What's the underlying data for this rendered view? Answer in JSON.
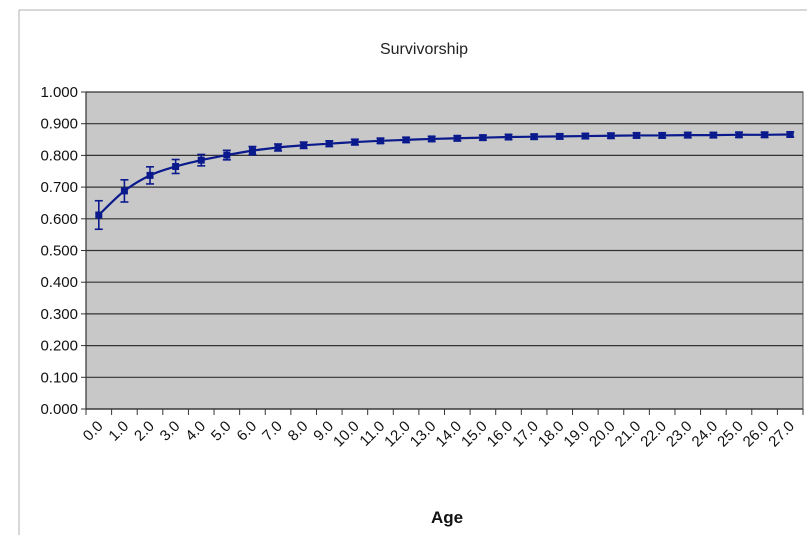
{
  "chart_data": {
    "type": "line",
    "title": "Survivorship",
    "xlabel": "Age",
    "ylabel": "",
    "ylim": [
      0,
      1
    ],
    "yticks": [
      "0.000",
      "0.100",
      "0.200",
      "0.300",
      "0.400",
      "0.500",
      "0.600",
      "0.700",
      "0.800",
      "0.900",
      "1.000"
    ],
    "categories": [
      "0.0",
      "1.0",
      "2.0",
      "3.0",
      "4.0",
      "5.0",
      "6.0",
      "7.0",
      "8.0",
      "9.0",
      "10.0",
      "11.0",
      "12.0",
      "13.0",
      "14.0",
      "15.0",
      "16.0",
      "17.0",
      "18.0",
      "19.0",
      "20.0",
      "21.0",
      "22.0",
      "23.0",
      "24.0",
      "25.0",
      "26.0",
      "27.0"
    ],
    "series": [
      {
        "values": [
          0.612,
          0.688,
          0.737,
          0.765,
          0.785,
          0.801,
          0.815,
          0.825,
          0.832,
          0.837,
          0.842,
          0.846,
          0.849,
          0.852,
          0.854,
          0.856,
          0.858,
          0.859,
          0.86,
          0.861,
          0.862,
          0.863,
          0.863,
          0.864,
          0.864,
          0.865,
          0.865,
          0.866
        ],
        "error": [
          0.045,
          0.035,
          0.027,
          0.022,
          0.018,
          0.015,
          0.013,
          0.011,
          0.01,
          0.009,
          0.009,
          0.008,
          0.008,
          0.008,
          0.008,
          0.008,
          0.008,
          0.008,
          0.008,
          0.008,
          0.008,
          0.008,
          0.008,
          0.008,
          0.008,
          0.008,
          0.008,
          0.008
        ]
      }
    ],
    "grid": true,
    "colors": {
      "plot_background": "#c8c8c8",
      "series": "#0a1a8c",
      "gridline": "#333333"
    }
  }
}
